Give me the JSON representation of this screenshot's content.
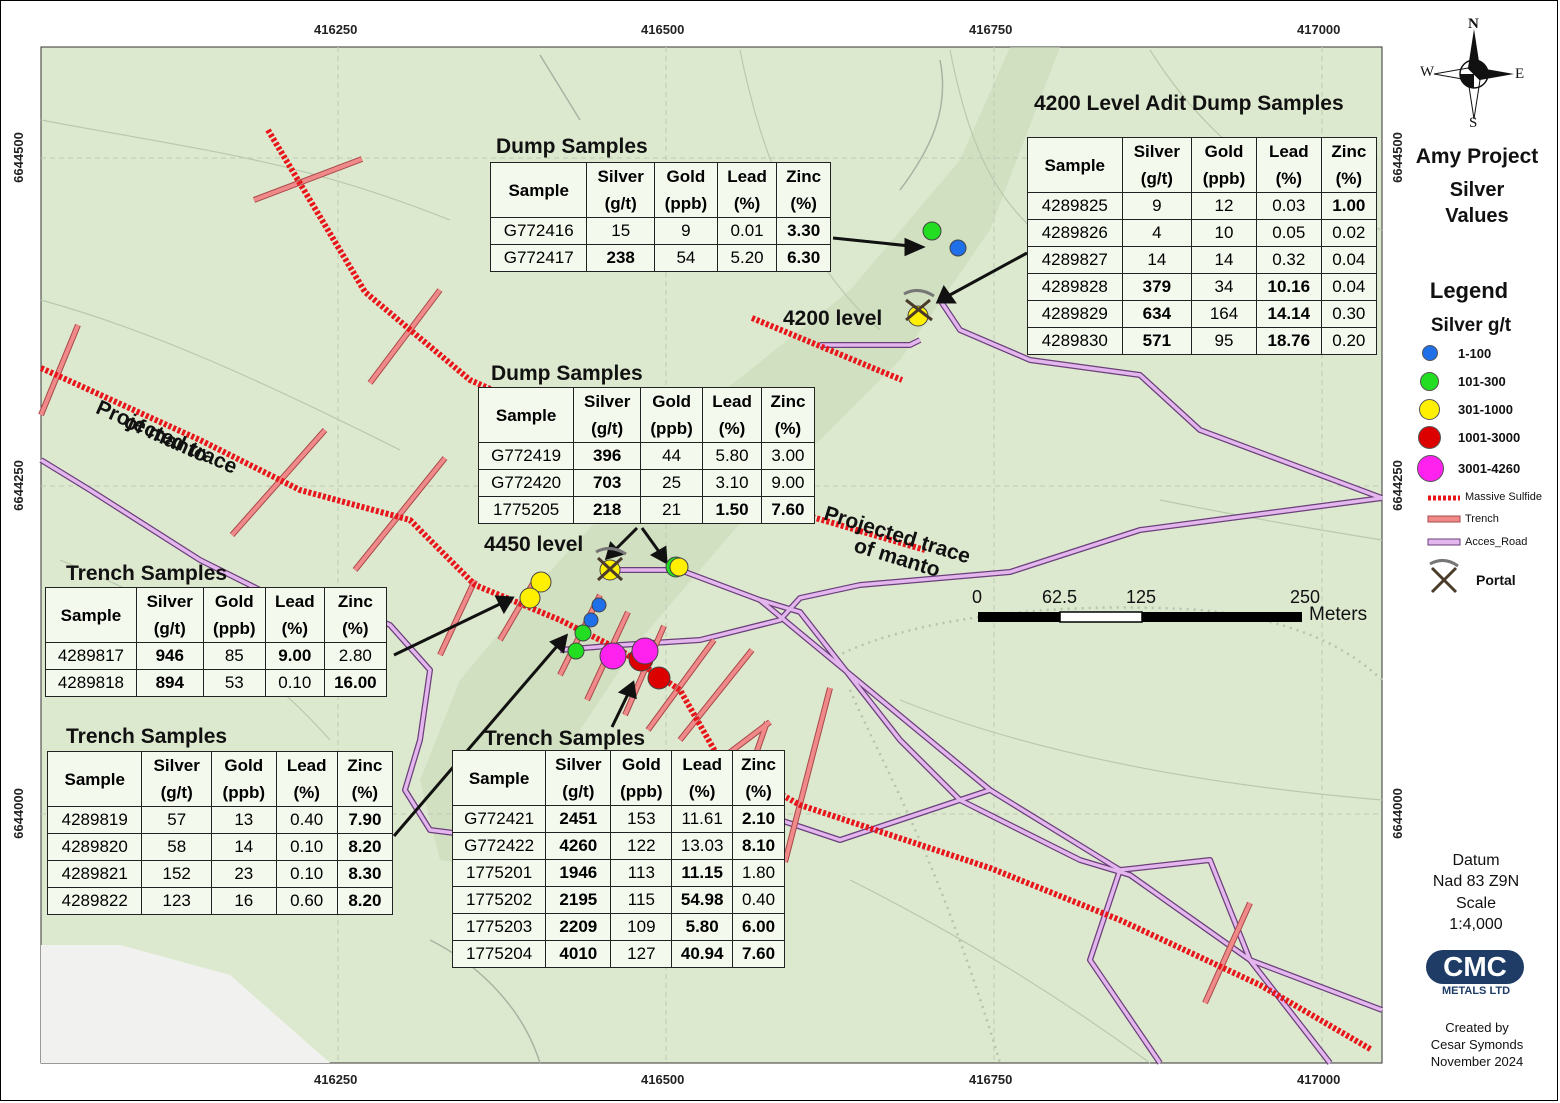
{
  "map": {
    "title": "Amy Project",
    "subtitle_line1": "Silver",
    "subtitle_line2": "Values",
    "x_ticks": [
      "416250",
      "416500",
      "416750",
      "417000"
    ],
    "y_ticks": [
      "6644500",
      "6644250",
      "6644000"
    ],
    "north_arrow": {
      "n": "N",
      "s": "S",
      "e": "E",
      "w": "W"
    },
    "labels": {
      "level_4200": "4200 level",
      "level_4450": "4450 level",
      "manto_left_line1": "Projected trace",
      "manto_left_line2": "of manto",
      "manto_right_line1": "Projected trace",
      "manto_right_line2": "of manto"
    },
    "scale_bar": {
      "ticks": [
        "0",
        "62.5",
        "125",
        "250"
      ],
      "unit": "Meters"
    },
    "datum": {
      "label": "Datum",
      "value": "Nad 83 Z9N",
      "scale_label": "Scale",
      "scale_value": "1:4,000"
    },
    "logo": {
      "text": "CMC",
      "sub": "METALS LTD"
    },
    "credits": {
      "line1": "Created by",
      "line2": "Cesar Symonds",
      "line3": "November 2024"
    },
    "colors": {
      "bg": "#dde9cf",
      "manto": "#e8151b",
      "trench": "#f08a8a",
      "road": "#d9a6e6"
    }
  },
  "legend": {
    "title": "Legend",
    "subtitle": "Silver g/t",
    "classes": [
      {
        "label": "1-100",
        "color": "#1f6fe8"
      },
      {
        "label": "101-300",
        "color": "#22dd22"
      },
      {
        "label": "301-1000",
        "color": "#ffef00"
      },
      {
        "label": "1001-3000",
        "color": "#dd0000"
      },
      {
        "label": "3001-4260",
        "color": "#ff22ee"
      }
    ],
    "lines": {
      "massive_sulfide": "Massive Sulfide",
      "trench": "Trench",
      "road": "Acces_Road"
    },
    "portal": "Portal",
    "portal_icon": "pickaxe-icon"
  },
  "tables": {
    "adit_4200": {
      "title": "4200 Level Adit Dump Samples",
      "headers": [
        [
          "Sample"
        ],
        [
          "Silver",
          "(g/t)"
        ],
        [
          "Gold",
          "(ppb)"
        ],
        [
          "Lead",
          "(%)"
        ],
        [
          "Zinc",
          "(%)"
        ]
      ],
      "rows": [
        [
          "4289825",
          "9",
          "12",
          "0.03",
          "1.00"
        ],
        [
          "4289826",
          "4",
          "10",
          "0.05",
          "0.02"
        ],
        [
          "4289827",
          "14",
          "14",
          "0.32",
          "0.04"
        ],
        [
          "4289828",
          "379",
          "34",
          "10.16",
          "0.04"
        ],
        [
          "4289829",
          "634",
          "164",
          "14.14",
          "0.30"
        ],
        [
          "4289830",
          "571",
          "95",
          "18.76",
          "0.20"
        ]
      ],
      "bold": [
        [
          0,
          4
        ],
        [
          3,
          1
        ],
        [
          3,
          3
        ],
        [
          4,
          1
        ],
        [
          4,
          3
        ],
        [
          5,
          1
        ],
        [
          5,
          3
        ]
      ]
    },
    "dump_upper": {
      "title": "Dump Samples",
      "headers": [
        [
          "Sample"
        ],
        [
          "Silver",
          "(g/t)"
        ],
        [
          "Gold",
          "(ppb)"
        ],
        [
          "Lead",
          "(%)"
        ],
        [
          "Zinc",
          "(%)"
        ]
      ],
      "rows": [
        [
          "G772416",
          "15",
          "9",
          "0.01",
          "3.30"
        ],
        [
          "G772417",
          "238",
          "54",
          "5.20",
          "6.30"
        ]
      ],
      "bold": [
        [
          0,
          4
        ],
        [
          1,
          1
        ],
        [
          1,
          4
        ]
      ]
    },
    "dump_middle": {
      "title": "Dump Samples",
      "headers": [
        [
          "Sample"
        ],
        [
          "Silver",
          "(g/t)"
        ],
        [
          "Gold",
          "(ppb)"
        ],
        [
          "Lead",
          "(%)"
        ],
        [
          "Zinc",
          "(%)"
        ]
      ],
      "rows": [
        [
          "G772419",
          "396",
          "44",
          "5.80",
          "3.00"
        ],
        [
          "G772420",
          "703",
          "25",
          "3.10",
          "9.00"
        ],
        [
          "1775205",
          "218",
          "21",
          "1.50",
          "7.60"
        ]
      ],
      "bold": [
        [
          0,
          1
        ],
        [
          1,
          1
        ],
        [
          2,
          1
        ],
        [
          2,
          3
        ],
        [
          2,
          4
        ]
      ]
    },
    "trench_a": {
      "title": "Trench Samples",
      "headers": [
        [
          "Sample"
        ],
        [
          "Silver",
          "(g/t)"
        ],
        [
          "Gold",
          "(ppb)"
        ],
        [
          "Lead",
          "(%)"
        ],
        [
          "Zinc",
          "(%)"
        ]
      ],
      "rows": [
        [
          "4289817",
          "946",
          "85",
          "9.00",
          "2.80"
        ],
        [
          "4289818",
          "894",
          "53",
          "0.10",
          "16.00"
        ]
      ],
      "bold": [
        [
          0,
          1
        ],
        [
          0,
          3
        ],
        [
          1,
          1
        ],
        [
          1,
          4
        ]
      ]
    },
    "trench_b": {
      "title": "Trench Samples",
      "headers": [
        [
          "Sample"
        ],
        [
          "Silver",
          "(g/t)"
        ],
        [
          "Gold",
          "(ppb)"
        ],
        [
          "Lead",
          "(%)"
        ],
        [
          "Zinc",
          "(%)"
        ]
      ],
      "rows": [
        [
          "4289819",
          "57",
          "13",
          "0.40",
          "7.90"
        ],
        [
          "4289820",
          "58",
          "14",
          "0.10",
          "8.20"
        ],
        [
          "4289821",
          "152",
          "23",
          "0.10",
          "8.30"
        ],
        [
          "4289822",
          "123",
          "16",
          "0.60",
          "8.20"
        ]
      ],
      "bold": [
        [
          0,
          4
        ],
        [
          1,
          4
        ],
        [
          2,
          4
        ],
        [
          3,
          4
        ]
      ]
    },
    "trench_c": {
      "title": "Trench Samples",
      "headers": [
        [
          "Sample"
        ],
        [
          "Silver",
          "(g/t)"
        ],
        [
          "Gold",
          "(ppb)"
        ],
        [
          "Lead",
          "(%)"
        ],
        [
          "Zinc",
          "(%)"
        ]
      ],
      "rows": [
        [
          "G772421",
          "2451",
          "153",
          "11.61",
          "2.10"
        ],
        [
          "G772422",
          "4260",
          "122",
          "13.03",
          "8.10"
        ],
        [
          "1775201",
          "1946",
          "113",
          "11.15",
          "1.80"
        ],
        [
          "1775202",
          "2195",
          "115",
          "54.98",
          "0.40"
        ],
        [
          "1775203",
          "2209",
          "109",
          "5.80",
          "6.00"
        ],
        [
          "1775204",
          "4010",
          "127",
          "40.94",
          "7.60"
        ]
      ],
      "bold": [
        [
          0,
          1
        ],
        [
          0,
          4
        ],
        [
          1,
          1
        ],
        [
          1,
          4
        ],
        [
          2,
          1
        ],
        [
          2,
          3
        ],
        [
          3,
          1
        ],
        [
          3,
          3
        ],
        [
          4,
          1
        ],
        [
          4,
          3
        ],
        [
          4,
          4
        ],
        [
          5,
          1
        ],
        [
          5,
          3
        ],
        [
          5,
          4
        ]
      ]
    }
  }
}
